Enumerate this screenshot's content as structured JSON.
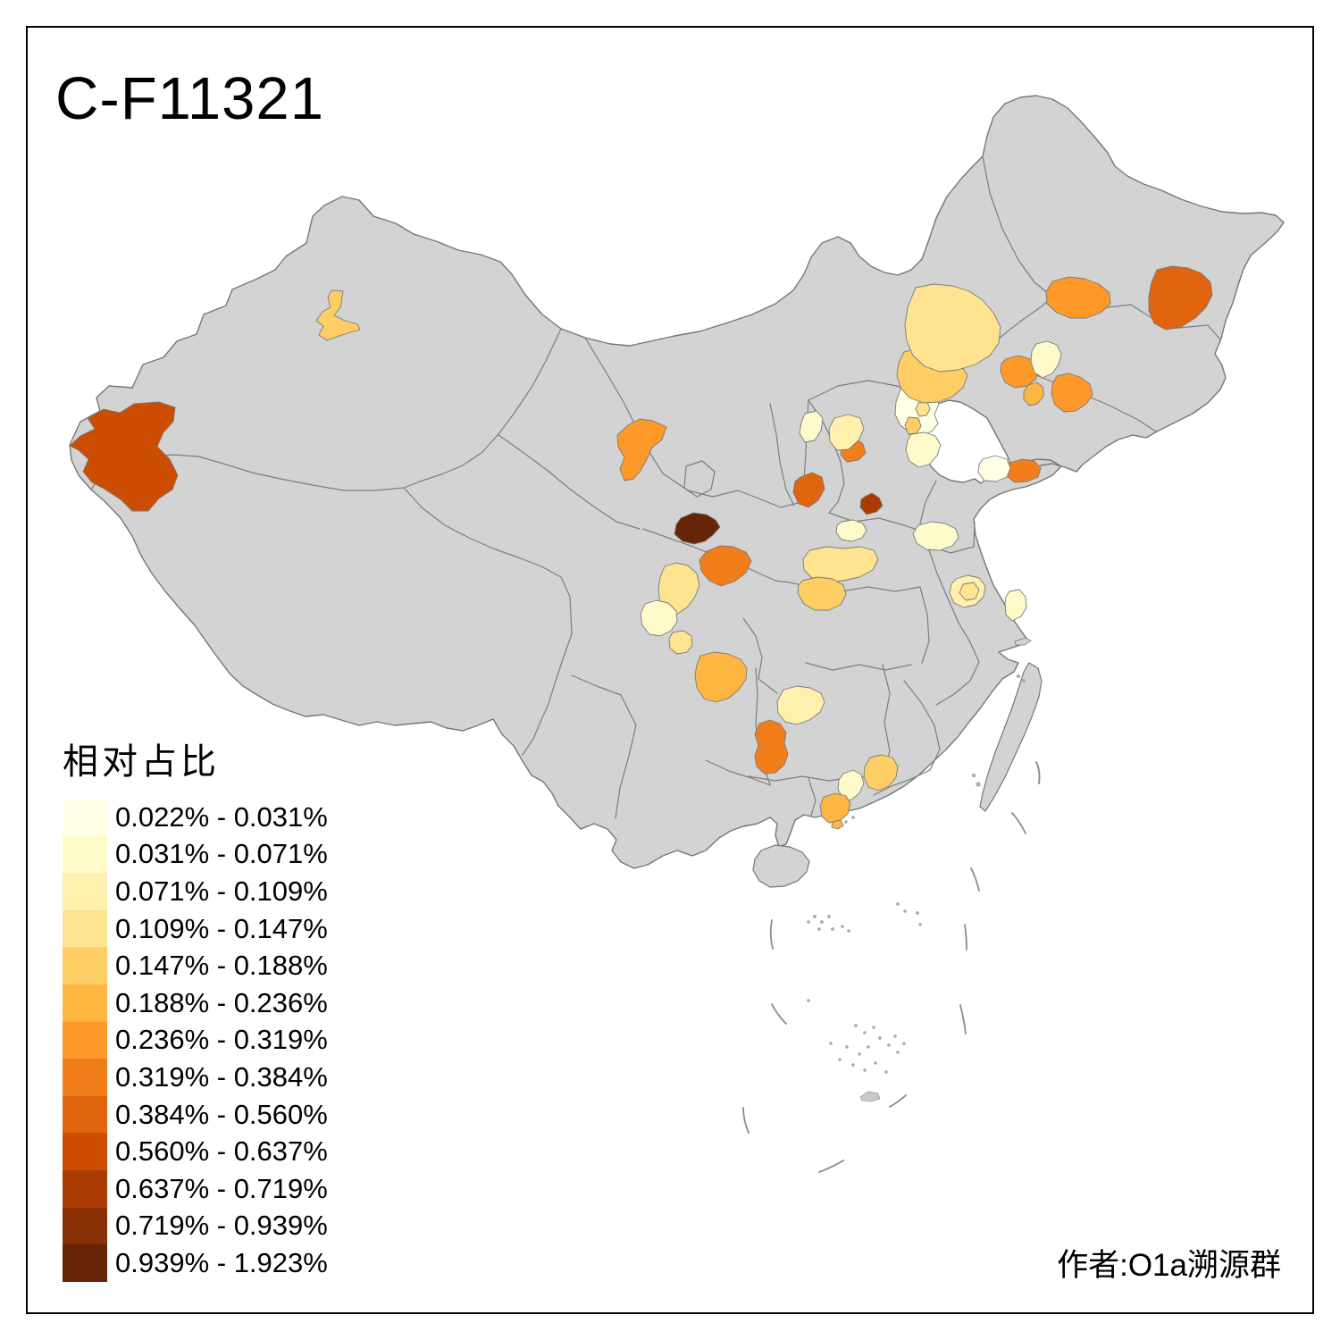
{
  "title": "C-F11321",
  "attribution": "作者:O1a溯源群",
  "legend": {
    "title": "相对占比",
    "classes": [
      {
        "label": "0.022% - 0.031%",
        "color": "#FFFFE5"
      },
      {
        "label": "0.031% - 0.071%",
        "color": "#FFFACA"
      },
      {
        "label": "0.071% - 0.109%",
        "color": "#FFF0AE"
      },
      {
        "label": "0.109% - 0.147%",
        "color": "#FEE391"
      },
      {
        "label": "0.147% - 0.188%",
        "color": "#FECE65"
      },
      {
        "label": "0.188% - 0.236%",
        "color": "#FEB642"
      },
      {
        "label": "0.236% - 0.319%",
        "color": "#FE9929"
      },
      {
        "label": "0.319% - 0.384%",
        "color": "#F27E1B"
      },
      {
        "label": "0.384% - 0.560%",
        "color": "#E1640E"
      },
      {
        "label": "0.560% - 0.637%",
        "color": "#CC4C02"
      },
      {
        "label": "0.637% - 0.719%",
        "color": "#AA3C03"
      },
      {
        "label": "0.719% - 0.939%",
        "color": "#882F05"
      },
      {
        "label": "0.939% - 1.923%",
        "color": "#662506"
      }
    ]
  },
  "map": {
    "background": "#FFFFFF",
    "land_fill": "#D3D3D3",
    "land_stroke": "#767676",
    "province_border": "#7D7D7D",
    "dash_line_color": "#8A8A8A",
    "frame_color": "#000000",
    "regions": [
      {
        "id": "west-xinjiang-kashgar",
        "class_index": 10
      },
      {
        "id": "central-xinjiang-urumqi",
        "class_index": 5
      },
      {
        "id": "gansu-hexi-corridor",
        "class_index": 7
      },
      {
        "id": "gansu-dingxi-dark",
        "class_index": 13
      },
      {
        "id": "shaanxi-hanzhong",
        "class_index": 8
      },
      {
        "id": "shanxi-linfen",
        "class_index": 9
      },
      {
        "id": "henan-north-small-dark",
        "class_index": 11
      },
      {
        "id": "shanxi-yangquan",
        "class_index": 8
      },
      {
        "id": "shanxi-xinzhou-pale",
        "class_index": 2
      },
      {
        "id": "beijing",
        "class_index": 1
      },
      {
        "id": "beijing-core",
        "class_index": 4
      },
      {
        "id": "langfang",
        "class_index": 5
      },
      {
        "id": "tianjin-cangzhou",
        "class_index": 2
      },
      {
        "id": "shijiazhuang",
        "class_index": 3
      },
      {
        "id": "chengde",
        "class_index": 5
      },
      {
        "id": "inner-mongolia-chifeng",
        "class_index": 4
      },
      {
        "id": "liaoning-chaoyang",
        "class_index": 7
      },
      {
        "id": "liaoning-tieling-pale",
        "class_index": 2
      },
      {
        "id": "liaoning-anshan-dandong",
        "class_index": 7
      },
      {
        "id": "liaoning-panjin",
        "class_index": 6
      },
      {
        "id": "heilongjiang-suihua",
        "class_index": 7
      },
      {
        "id": "heilongjiang-jiamusi",
        "class_index": 9
      },
      {
        "id": "shandong-yantai",
        "class_index": 8
      },
      {
        "id": "shandong-weifang-pale",
        "class_index": 1
      },
      {
        "id": "shandong-jining",
        "class_index": 2
      },
      {
        "id": "jiangsu-xuzhou",
        "class_index": 3
      },
      {
        "id": "jiangsu-xuzhou-core",
        "class_index": 4
      },
      {
        "id": "jiangsu-yancheng",
        "class_index": 2
      },
      {
        "id": "henan-nanyang",
        "class_index": 4
      },
      {
        "id": "hubei-xiangyang",
        "class_index": 5
      },
      {
        "id": "henan-xuchang-pale",
        "class_index": 2
      },
      {
        "id": "sichuan-mianyang",
        "class_index": 4
      },
      {
        "id": "sichuan-chengdu-pale",
        "class_index": 2
      },
      {
        "id": "sichuan-deyang-small",
        "class_index": 4
      },
      {
        "id": "sichuan-yibin-luzhou",
        "class_index": 6
      },
      {
        "id": "guizhou-zunyi-pale",
        "class_index": 3
      },
      {
        "id": "hunan-huaihua",
        "class_index": 8
      },
      {
        "id": "guangdong-heyuan",
        "class_index": 5
      },
      {
        "id": "guangdong-qingyuan-pale",
        "class_index": 2
      },
      {
        "id": "guangdong-foshan",
        "class_index": 6
      },
      {
        "id": "guangdong-foshan-islet",
        "class_index": 6
      }
    ]
  }
}
